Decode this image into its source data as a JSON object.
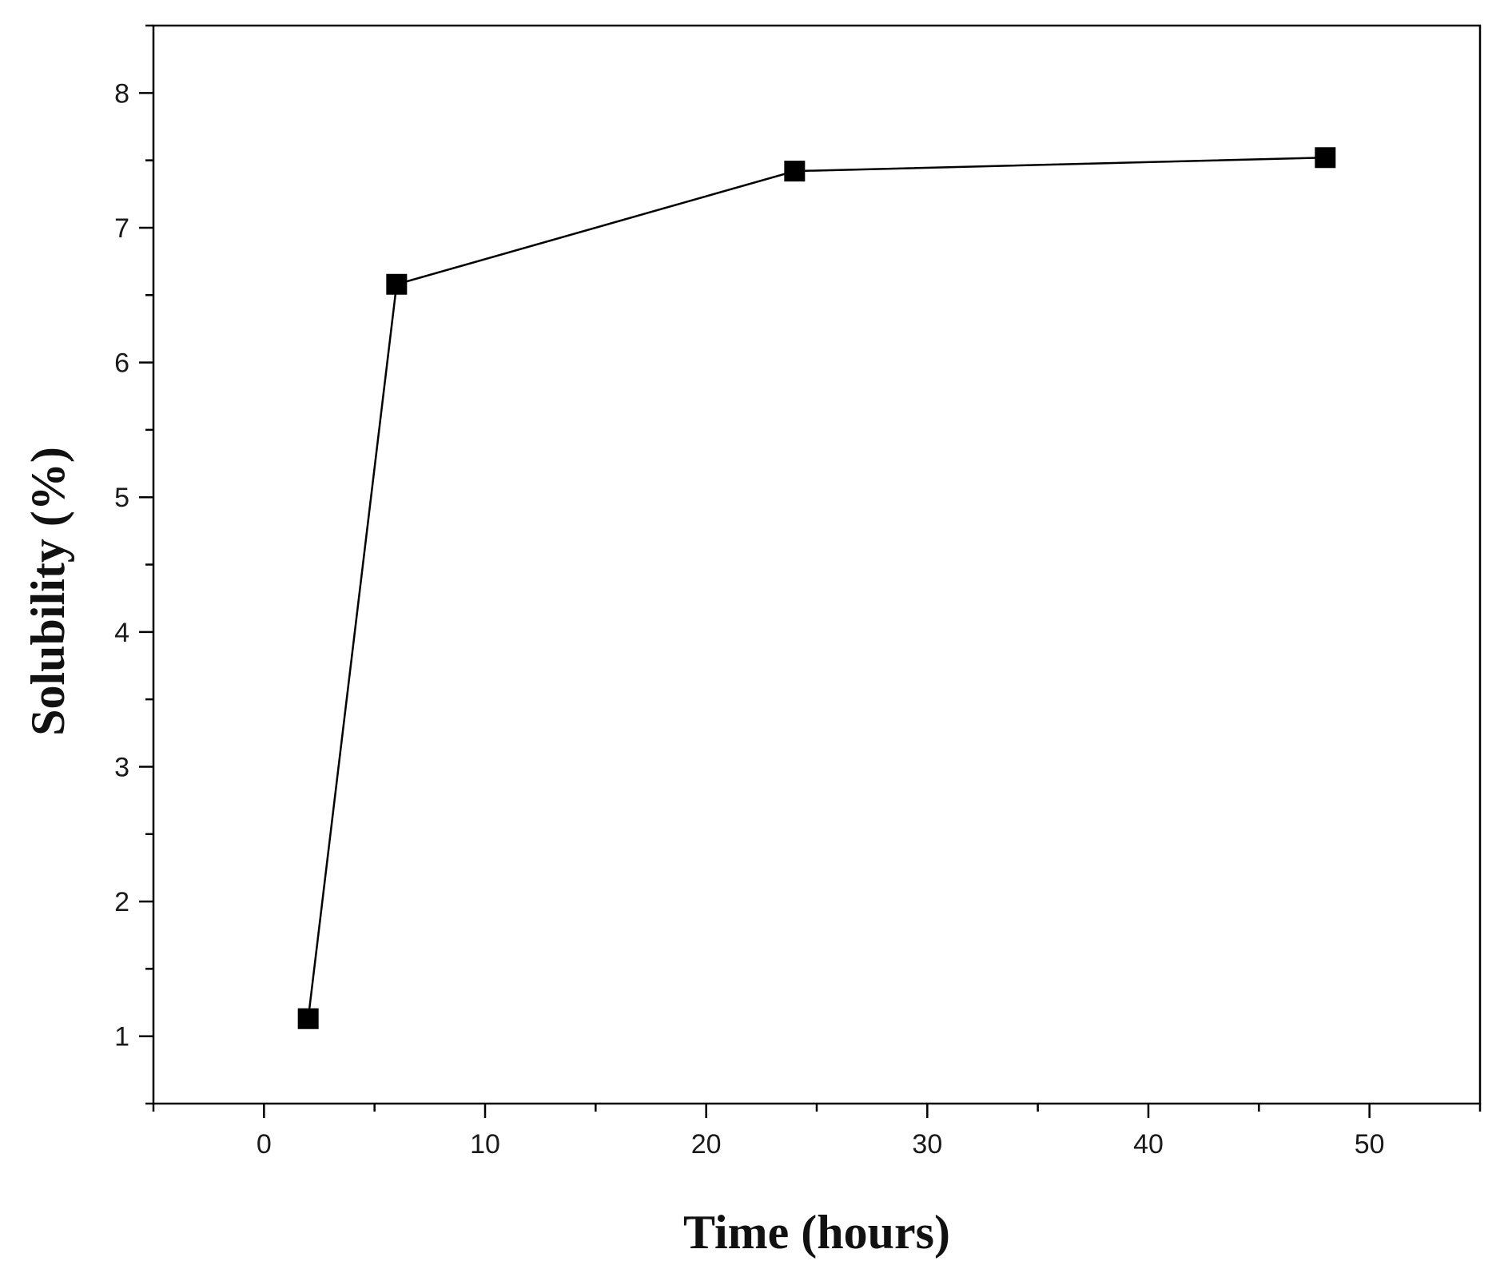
{
  "chart_data": {
    "type": "line",
    "title": "",
    "xlabel": "Time (hours)",
    "ylabel": "Solubility (%)",
    "xlim": [
      -5,
      55
    ],
    "ylim": [
      0.5,
      8.5
    ],
    "x_ticks": [
      "0",
      "10",
      "20",
      "30",
      "40",
      "50"
    ],
    "y_ticks": [
      "1",
      "2",
      "3",
      "4",
      "5",
      "6",
      "7",
      "8"
    ],
    "grid": false,
    "legend": "none",
    "series": [
      {
        "marker": "square",
        "color": "#000000",
        "x": [
          2,
          6,
          24,
          48
        ],
        "y": [
          1.13,
          6.58,
          7.42,
          7.52
        ]
      }
    ]
  }
}
